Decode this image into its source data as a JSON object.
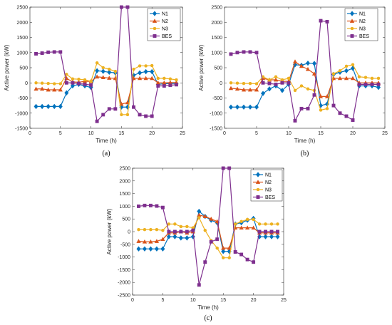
{
  "chart_data": [
    {
      "type": "line",
      "panel_label": "(a)",
      "xlabel": "Time (h)",
      "ylabel": "Active power (kW)",
      "xlim": [
        0,
        25
      ],
      "ylim": [
        -1500,
        2500
      ],
      "xticks": [
        0,
        5,
        10,
        15,
        20,
        25
      ],
      "yticks": [
        -1500,
        -1000,
        -500,
        0,
        500,
        1000,
        1500,
        2000,
        2500
      ],
      "grid": false,
      "legend": "top-right",
      "x": [
        1,
        2,
        3,
        4,
        5,
        6,
        7,
        8,
        9,
        10,
        11,
        12,
        13,
        14,
        15,
        16,
        17,
        18,
        19,
        20,
        21,
        22,
        23,
        24
      ],
      "series": [
        {
          "name": "N1",
          "color": "#0072bd",
          "marker": "diamond",
          "values": [
            -780,
            -780,
            -780,
            -780,
            -780,
            -330,
            -100,
            -50,
            -100,
            -150,
            400,
            380,
            350,
            330,
            -800,
            -800,
            250,
            330,
            370,
            370,
            -50,
            -30,
            -20,
            -20
          ]
        },
        {
          "name": "N2",
          "color": "#d95319",
          "marker": "triangle",
          "values": [
            -200,
            -200,
            -230,
            -230,
            -230,
            150,
            30,
            20,
            50,
            50,
            200,
            180,
            160,
            150,
            -700,
            -650,
            150,
            150,
            150,
            150,
            0,
            0,
            10,
            10
          ]
        },
        {
          "name": "N3",
          "color": "#edb120",
          "marker": "circle",
          "values": [
            0,
            -10,
            -20,
            -30,
            -30,
            280,
            130,
            120,
            100,
            50,
            660,
            500,
            450,
            380,
            -1050,
            -1050,
            450,
            560,
            560,
            570,
            150,
            150,
            130,
            100
          ]
        },
        {
          "name": "BES",
          "color": "#7e2f8e",
          "marker": "square",
          "values": [
            960,
            980,
            1010,
            1020,
            1020,
            0,
            0,
            -20,
            -50,
            -70,
            -1270,
            -1050,
            -860,
            -860,
            2500,
            2500,
            -800,
            -1050,
            -1100,
            -1100,
            -100,
            -100,
            -80,
            -60
          ]
        }
      ]
    },
    {
      "type": "line",
      "panel_label": "(b)",
      "xlabel": "Time (h)",
      "ylabel": "Active power (kW)",
      "xlim": [
        0,
        25
      ],
      "ylim": [
        -1500,
        2500
      ],
      "xticks": [
        0,
        5,
        10,
        15,
        20,
        25
      ],
      "yticks": [
        -1500,
        -1000,
        -500,
        0,
        500,
        1000,
        1500,
        2000,
        2500
      ],
      "grid": false,
      "legend": "top-right",
      "x": [
        1,
        2,
        3,
        4,
        5,
        6,
        7,
        8,
        9,
        10,
        11,
        12,
        13,
        14,
        15,
        16,
        17,
        18,
        19,
        20,
        21,
        22,
        23,
        24
      ],
      "series": [
        {
          "name": "N1",
          "color": "#0072bd",
          "marker": "diamond",
          "values": [
            -800,
            -800,
            -800,
            -800,
            -800,
            -350,
            -200,
            -100,
            -250,
            -50,
            600,
            580,
            650,
            640,
            -750,
            -700,
            280,
            350,
            400,
            480,
            -100,
            -100,
            -100,
            -150
          ]
        },
        {
          "name": "N2",
          "color": "#d95319",
          "marker": "triangle",
          "values": [
            -180,
            -200,
            -230,
            -230,
            -230,
            150,
            100,
            100,
            50,
            50,
            700,
            550,
            450,
            300,
            -450,
            -450,
            150,
            150,
            150,
            150,
            0,
            0,
            0,
            0
          ]
        },
        {
          "name": "N3",
          "color": "#edb120",
          "marker": "circle",
          "values": [
            0,
            -10,
            -20,
            -20,
            -30,
            200,
            100,
            200,
            100,
            150,
            -250,
            -100,
            -200,
            -250,
            -900,
            -850,
            300,
            400,
            550,
            600,
            200,
            180,
            150,
            150
          ]
        },
        {
          "name": "BES",
          "color": "#7e2f8e",
          "marker": "square",
          "values": [
            950,
            1000,
            1020,
            1020,
            1000,
            0,
            -20,
            -50,
            0,
            0,
            -1250,
            -850,
            -850,
            -400,
            2050,
            2020,
            -750,
            -1000,
            -1100,
            -1230,
            -50,
            -50,
            -50,
            -50
          ]
        }
      ]
    },
    {
      "type": "line",
      "panel_label": "(c)",
      "xlabel": "Time (h)",
      "ylabel": "Active power (kW)",
      "xlim": [
        0,
        25
      ],
      "ylim": [
        -2500,
        2500
      ],
      "xticks": [
        0,
        5,
        10,
        15,
        20,
        25
      ],
      "yticks": [
        -2500,
        -2000,
        -1500,
        -1000,
        -500,
        0,
        500,
        1000,
        1500,
        2000,
        2500
      ],
      "grid": false,
      "legend": "top-right",
      "x": [
        1,
        2,
        3,
        4,
        5,
        6,
        7,
        8,
        9,
        10,
        11,
        12,
        13,
        14,
        15,
        16,
        17,
        18,
        19,
        20,
        21,
        22,
        23,
        24
      ],
      "series": [
        {
          "name": "N1",
          "color": "#0072bd",
          "marker": "diamond",
          "values": [
            -680,
            -680,
            -680,
            -680,
            -680,
            -200,
            -200,
            -250,
            -250,
            -200,
            800,
            600,
            450,
            350,
            -780,
            -780,
            300,
            350,
            450,
            520,
            -200,
            -200,
            -200,
            -200
          ]
        },
        {
          "name": "N2",
          "color": "#d95319",
          "marker": "triangle",
          "values": [
            -380,
            -400,
            -400,
            -380,
            -300,
            -50,
            -50,
            0,
            -50,
            0,
            650,
            600,
            500,
            400,
            -650,
            -650,
            150,
            150,
            150,
            150,
            -50,
            -50,
            -50,
            -50
          ]
        },
        {
          "name": "N3",
          "color": "#edb120",
          "marker": "circle",
          "values": [
            80,
            80,
            80,
            80,
            50,
            300,
            300,
            200,
            200,
            150,
            550,
            50,
            -350,
            -650,
            -1030,
            -1030,
            300,
            400,
            480,
            480,
            300,
            300,
            300,
            300
          ]
        },
        {
          "name": "BES",
          "color": "#7e2f8e",
          "marker": "square",
          "values": [
            1000,
            1030,
            1030,
            1010,
            950,
            0,
            0,
            0,
            0,
            50,
            -2100,
            -1200,
            -400,
            -300,
            2500,
            2500,
            -800,
            -900,
            -1100,
            -1200,
            0,
            0,
            0,
            0
          ]
        }
      ]
    }
  ]
}
